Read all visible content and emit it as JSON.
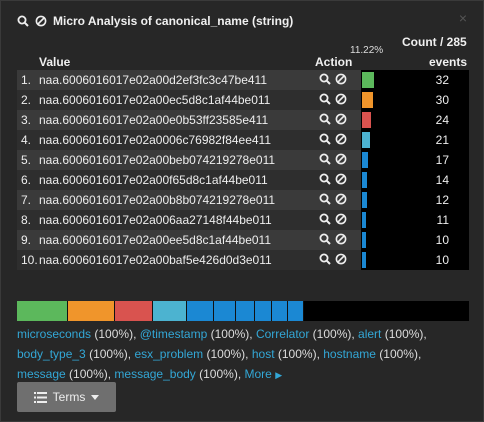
{
  "header": {
    "title": "Micro Analysis of canonical_name (string)",
    "search_icon": "search-icon",
    "ban_icon": "ban-icon"
  },
  "columns": {
    "value": "Value",
    "action": "Action",
    "count_line1": "Count / 285",
    "count_line2": "events",
    "top_percent": "11.22%"
  },
  "rows": [
    {
      "index": "1.",
      "value": "naa.6006016017e02a00d2ef3fc3c47be411",
      "count": "32",
      "count_n": 32,
      "color": "#5cb85c"
    },
    {
      "index": "2.",
      "value": "naa.6006016017e02a00ec5d8c1af44be011",
      "count": "30",
      "count_n": 30,
      "color": "#f0952b"
    },
    {
      "index": "3.",
      "value": "naa.6006016017e02a00e0b53ff23585e411",
      "count": "24",
      "count_n": 24,
      "color": "#d9534f"
    },
    {
      "index": "4.",
      "value": "naa.6006016017e02a0006c76982f84ee411",
      "count": "21",
      "count_n": 21,
      "color": "#4cb3d0"
    },
    {
      "index": "5.",
      "value": "naa.6006016017e02a00beb074219278e011",
      "count": "17",
      "count_n": 17,
      "color": "#1b88d3"
    },
    {
      "index": "6.",
      "value": "naa.6006016017e02a00f65d8c1af44be011",
      "count": "14",
      "count_n": 14,
      "color": "#1b88d3"
    },
    {
      "index": "7.",
      "value": "naa.6006016017e02a00b8b074219278e011",
      "count": "12",
      "count_n": 12,
      "color": "#1b88d3"
    },
    {
      "index": "8.",
      "value": "naa.6006016017e02a006aa27148f44be011",
      "count": "11",
      "count_n": 11,
      "color": "#1b88d3"
    },
    {
      "index": "9.",
      "value": "naa.6006016017e02a00ee5d8c1af44be011",
      "count": "10",
      "count_n": 10,
      "color": "#1b88d3"
    },
    {
      "index": "10.",
      "value": "naa.6006016017e02a00baf5e426d0d3e011",
      "count": "10",
      "count_n": 10,
      "color": "#1b88d3"
    }
  ],
  "fields": [
    {
      "name": "microseconds",
      "pct": "(100%)"
    },
    {
      "name": "@timestamp",
      "pct": "(100%)"
    },
    {
      "name": "Correlator",
      "pct": "(100%)"
    },
    {
      "name": "alert",
      "pct": "(100%)"
    },
    {
      "name": "body_type_3",
      "pct": "(100%)"
    },
    {
      "name": "esx_problem",
      "pct": "(100%)"
    },
    {
      "name": "host",
      "pct": "(100%)"
    },
    {
      "name": "hostname",
      "pct": "(100%)"
    },
    {
      "name": "message",
      "pct": "(100%)"
    },
    {
      "name": "message_body",
      "pct": "(100%)"
    }
  ],
  "more_label": "More",
  "terms_button": {
    "label": "Terms",
    "icon": "list-icon",
    "caret": "caret-down-icon"
  },
  "total": 285
}
